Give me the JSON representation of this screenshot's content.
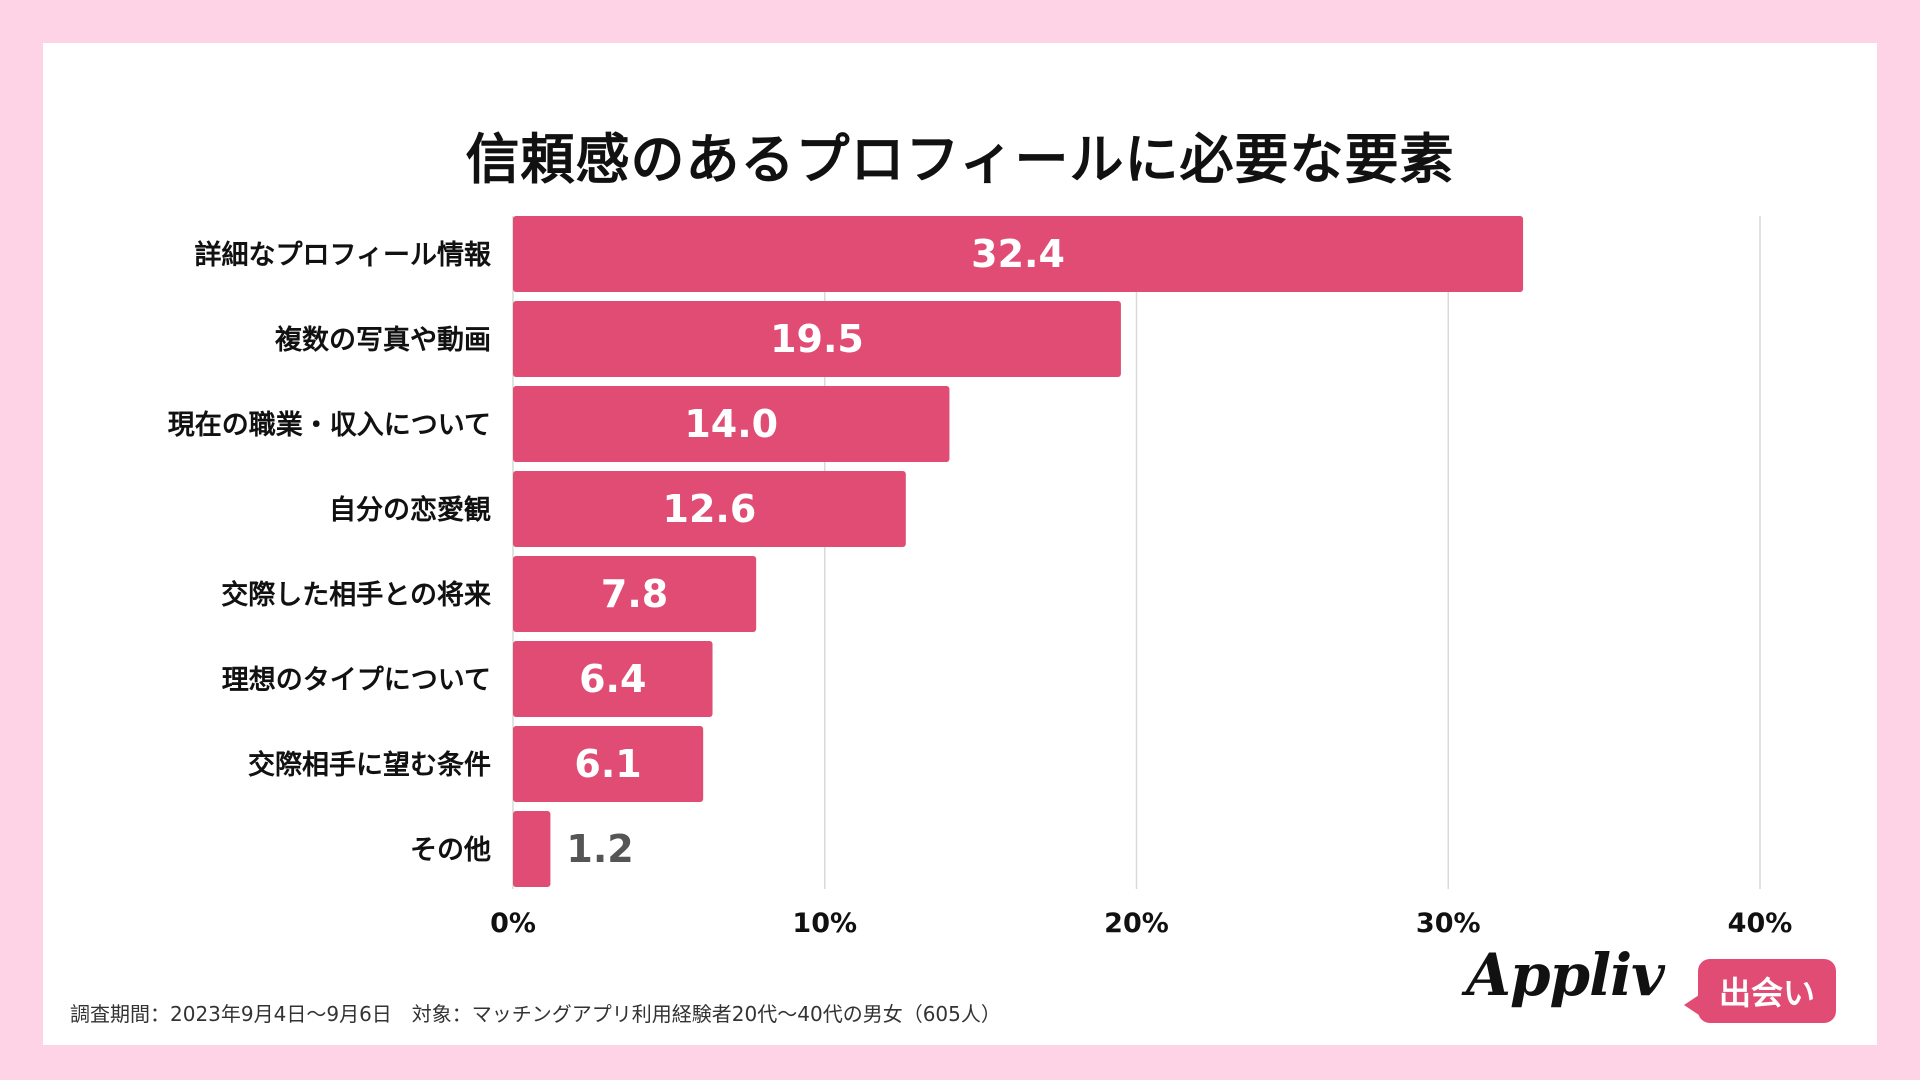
{
  "chart_data": {
    "type": "bar",
    "orientation": "horizontal",
    "title": "信頼感のあるプロフィールに必要な要素",
    "categories": [
      "詳細なプロフィール情報",
      "複数の写真や動画",
      "現在の職業・収入について",
      "自分の恋愛観",
      "交際した相手との将来",
      "理想のタイプについて",
      "交際相手に望む条件",
      "その他"
    ],
    "values": [
      32.4,
      19.5,
      14.0,
      12.6,
      7.8,
      6.4,
      6.1,
      1.2
    ],
    "value_labels": [
      "32.4",
      "19.5",
      "14.0",
      "12.6",
      "7.8",
      "6.4",
      "6.1",
      "1.2"
    ],
    "xlim": [
      0,
      40
    ],
    "xticks": [
      0,
      10,
      20,
      30,
      40
    ],
    "xtick_labels": [
      "0%",
      "10%",
      "20%",
      "30%",
      "40%"
    ],
    "xlabel": "",
    "ylabel": "",
    "grid": true,
    "bar_color": "#e04c73"
  },
  "footnote": "調査期間：2023年9月4日〜9月6日　対象：マッチングアプリ利用経験者20代〜40代の男女（605人）",
  "logo": {
    "text": "Appliv",
    "badge": "出会い"
  },
  "colors": {
    "background": "#ffd3e6",
    "bar": "#e04c73",
    "gridline": "#d9d9d9",
    "inside_label": "#ffffff",
    "outside_label": "#555555"
  }
}
